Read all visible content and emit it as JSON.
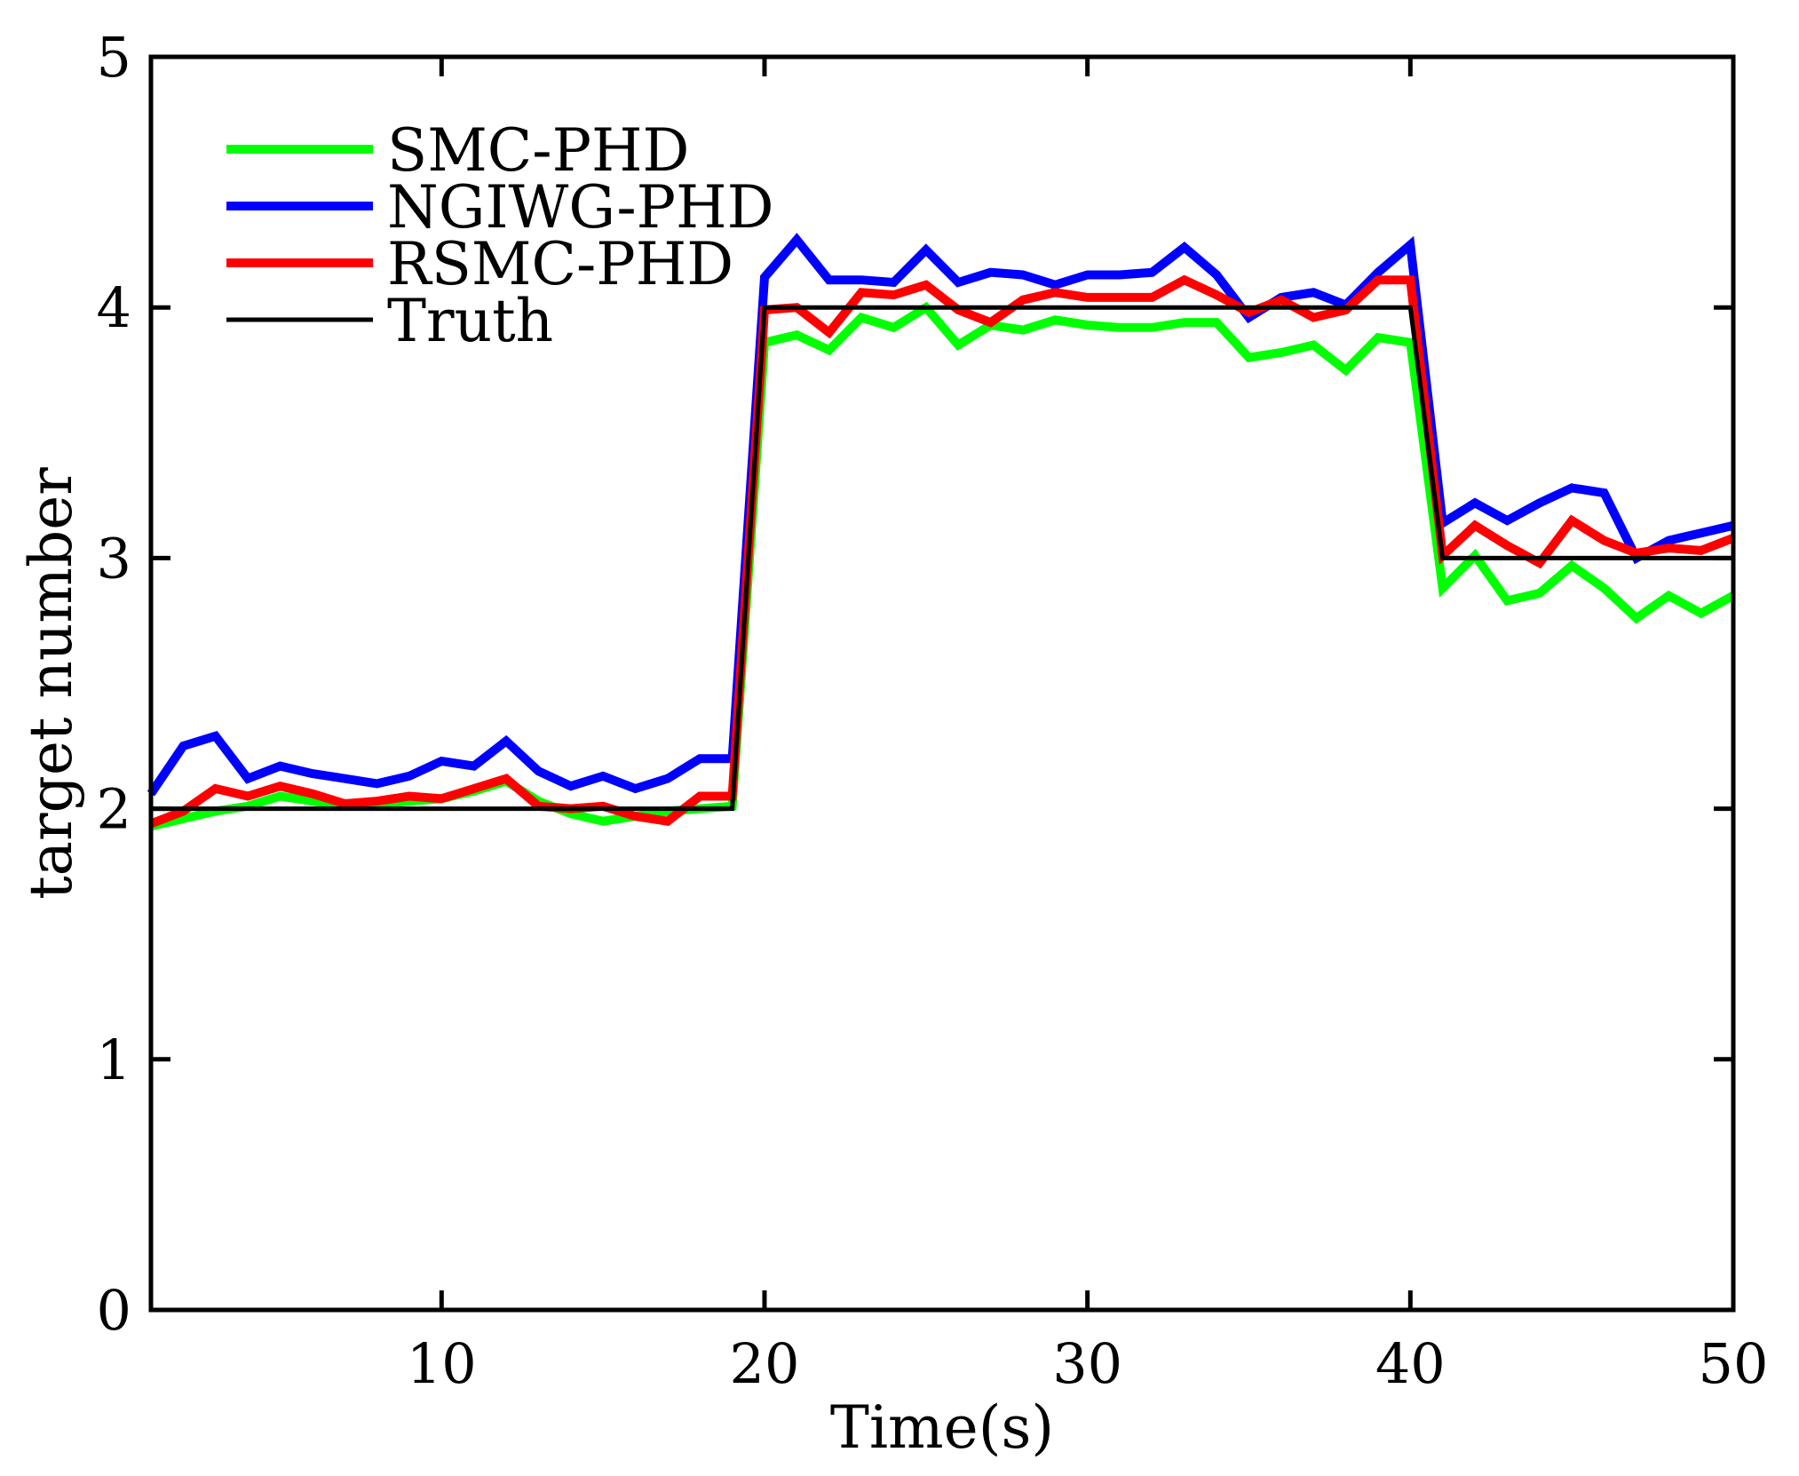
{
  "chart_data": {
    "type": "line",
    "title": "",
    "xlabel": "Time(s)",
    "ylabel": "target number",
    "xlim": [
      1,
      50
    ],
    "ylim": [
      0,
      5
    ],
    "xticks": [
      10,
      20,
      30,
      40,
      50
    ],
    "yticks": [
      0,
      1,
      2,
      3,
      4,
      5
    ],
    "xtick_labels": [
      "10",
      "20",
      "30",
      "40",
      "50"
    ],
    "ytick_labels": [
      "0",
      "1",
      "2",
      "3",
      "4",
      "5"
    ],
    "grid": false,
    "legend_position": "top-left",
    "x": [
      1,
      2,
      3,
      4,
      5,
      6,
      7,
      8,
      9,
      10,
      11,
      12,
      13,
      14,
      15,
      16,
      17,
      18,
      19,
      20,
      21,
      22,
      23,
      24,
      25,
      26,
      27,
      28,
      29,
      30,
      31,
      32,
      33,
      34,
      35,
      36,
      37,
      38,
      39,
      40,
      41,
      42,
      43,
      44,
      45,
      46,
      47,
      48,
      49,
      50
    ],
    "series": [
      {
        "name": "SMC-PHD",
        "color": "#00ff00",
        "values": [
          1.93,
          1.96,
          1.99,
          2.01,
          2.05,
          2.03,
          2.01,
          2.02,
          2.03,
          2.04,
          2.07,
          2.11,
          2.03,
          1.98,
          1.95,
          1.97,
          1.99,
          2.0,
          2.01,
          3.86,
          3.89,
          3.83,
          3.96,
          3.92,
          4.0,
          3.85,
          3.93,
          3.91,
          3.95,
          3.93,
          3.92,
          3.92,
          3.94,
          3.94,
          3.8,
          3.82,
          3.85,
          3.75,
          3.88,
          3.86,
          2.88,
          3.01,
          2.83,
          2.86,
          2.97,
          2.88,
          2.76,
          2.85,
          2.78,
          2.85
        ]
      },
      {
        "name": "NGIWG-PHD",
        "color": "#0000ff",
        "values": [
          2.06,
          2.25,
          2.29,
          2.12,
          2.17,
          2.14,
          2.12,
          2.1,
          2.13,
          2.19,
          2.17,
          2.27,
          2.15,
          2.09,
          2.13,
          2.08,
          2.12,
          2.2,
          2.2,
          4.12,
          4.27,
          4.11,
          4.11,
          4.1,
          4.23,
          4.1,
          4.14,
          4.13,
          4.09,
          4.13,
          4.13,
          4.14,
          4.24,
          4.13,
          3.96,
          4.04,
          4.06,
          4.01,
          4.14,
          4.25,
          3.14,
          3.22,
          3.15,
          3.22,
          3.28,
          3.26,
          3.0,
          3.07,
          3.1,
          3.13
        ]
      },
      {
        "name": "RSMC-PHD",
        "color": "#ff0000",
        "values": [
          1.94,
          1.99,
          2.08,
          2.05,
          2.09,
          2.06,
          2.02,
          2.03,
          2.05,
          2.04,
          2.08,
          2.12,
          2.01,
          2.0,
          2.01,
          1.97,
          1.95,
          2.05,
          2.05,
          3.99,
          4.0,
          3.9,
          4.06,
          4.05,
          4.09,
          3.99,
          3.94,
          4.03,
          4.06,
          4.04,
          4.04,
          4.04,
          4.11,
          4.05,
          3.98,
          4.03,
          3.96,
          3.99,
          4.11,
          4.11,
          3.01,
          3.13,
          3.05,
          2.98,
          3.15,
          3.07,
          3.02,
          3.04,
          3.03,
          3.08
        ]
      },
      {
        "name": "Truth",
        "color": "#000000",
        "values": [
          2,
          2,
          2,
          2,
          2,
          2,
          2,
          2,
          2,
          2,
          2,
          2,
          2,
          2,
          2,
          2,
          2,
          2,
          2,
          4,
          4,
          4,
          4,
          4,
          4,
          4,
          4,
          4,
          4,
          4,
          4,
          4,
          4,
          4,
          4,
          4,
          4,
          4,
          4,
          4,
          3,
          3,
          3,
          3,
          3,
          3,
          3,
          3,
          3,
          3
        ]
      }
    ]
  }
}
